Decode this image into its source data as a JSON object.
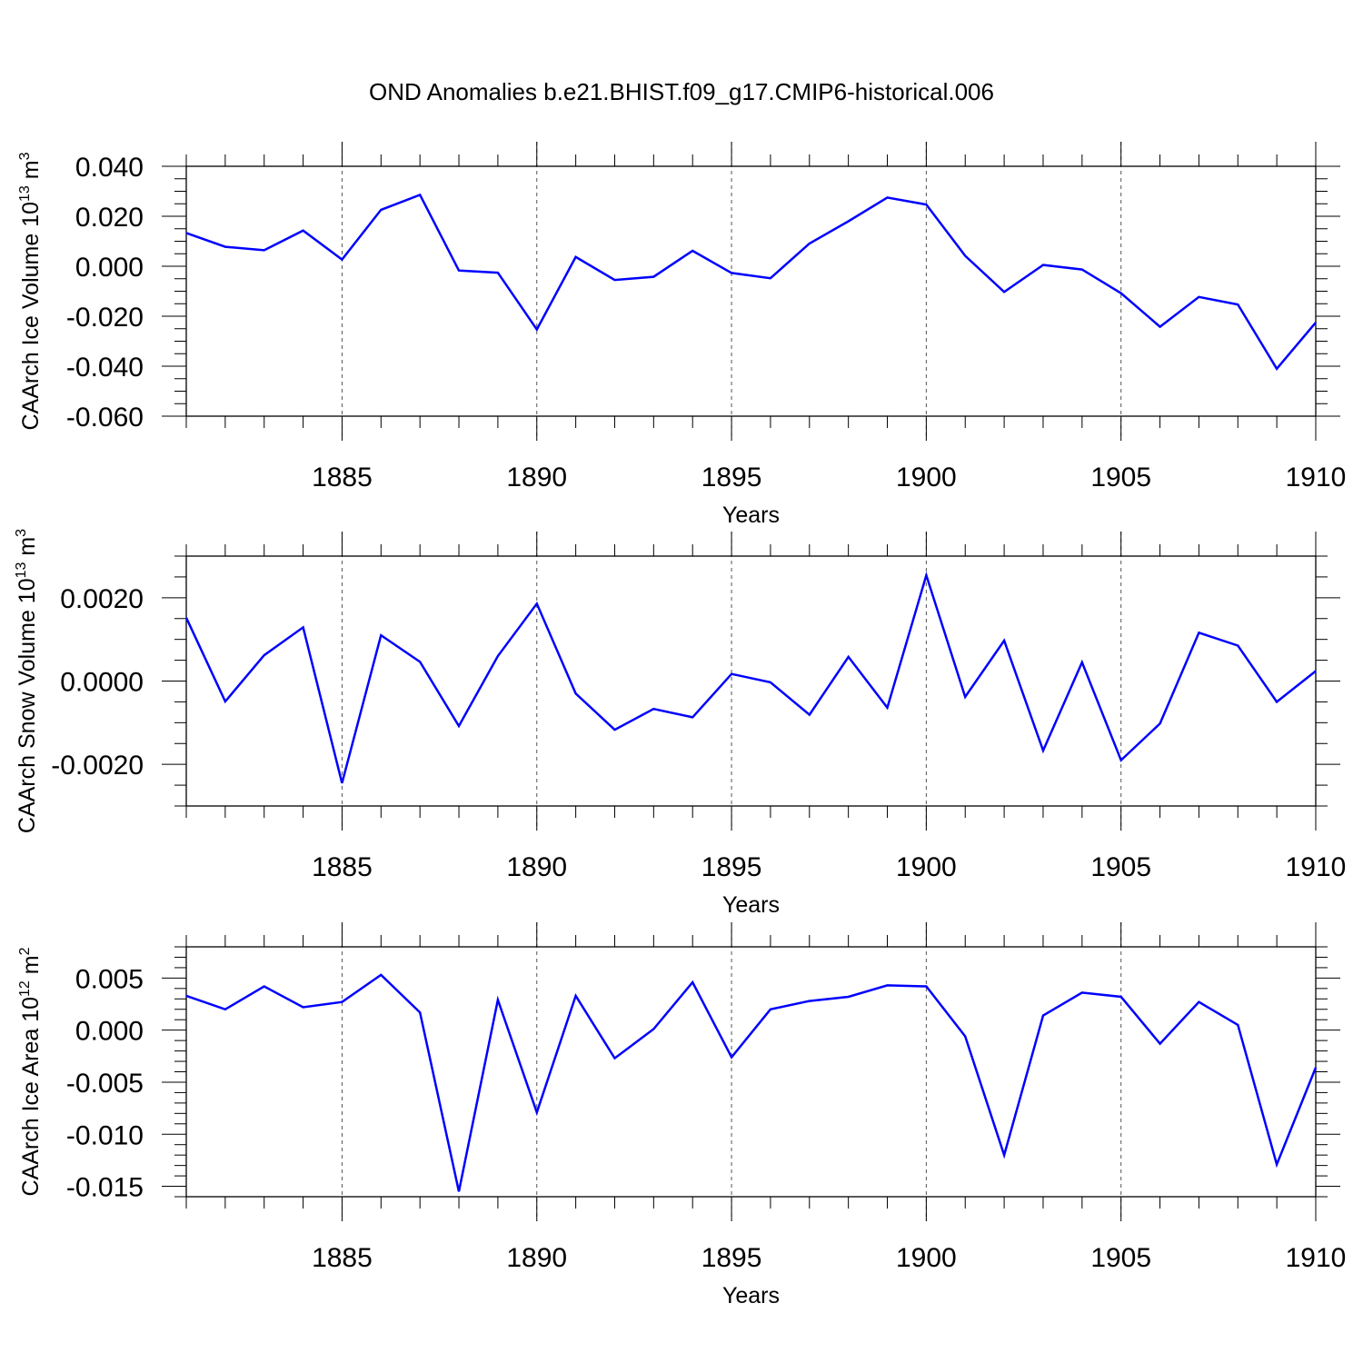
{
  "title": "OND Anomalies b.e21.BHIST.f09_g17.CMIP6-historical.006",
  "colors": {
    "line": "#0000ff",
    "axis": "#000000",
    "grid": "#555555"
  },
  "chart_data": [
    {
      "type": "line",
      "xlabel": "Years",
      "ylabel": {
        "text": "CAArch Ice Volume 10",
        "exp": "13",
        "unit": " m",
        "unit_exp": "3"
      },
      "xlim": [
        1881,
        1910
      ],
      "ylim": [
        -0.06,
        0.04
      ],
      "x_ticks": [
        1885,
        1890,
        1895,
        1900,
        1905,
        1910
      ],
      "x_tick_labels": [
        "1885",
        "1890",
        "1895",
        "1900",
        "1905",
        "1910"
      ],
      "y_ticks": [
        0.04,
        0.02,
        0.0,
        -0.02,
        -0.04,
        -0.06
      ],
      "y_tick_labels": [
        "0.040",
        "0.020",
        "0.000",
        "-0.020",
        "-0.040",
        "-0.060"
      ],
      "x_minor_step": 1,
      "y_minor_step": 0.005,
      "grid": "vertical-dashed",
      "series": [
        {
          "name": "CAArch Ice Volume",
          "x": [
            1881,
            1882,
            1883,
            1884,
            1885,
            1886,
            1887,
            1888,
            1889,
            1890,
            1891,
            1892,
            1893,
            1894,
            1895,
            1896,
            1897,
            1898,
            1899,
            1900,
            1901,
            1902,
            1903,
            1904,
            1905,
            1906,
            1907,
            1908,
            1909,
            1910
          ],
          "values": [
            0.0133,
            0.0078,
            0.0064,
            0.0143,
            0.0027,
            0.0226,
            0.0286,
            -0.0017,
            -0.0026,
            -0.0253,
            0.0037,
            -0.0055,
            -0.0042,
            0.0062,
            -0.0027,
            -0.0048,
            0.0091,
            0.018,
            0.0275,
            0.0247,
            0.0042,
            -0.0103,
            0.0005,
            -0.0013,
            -0.0108,
            -0.0242,
            -0.0123,
            -0.0153,
            -0.041,
            -0.0225
          ]
        }
      ]
    },
    {
      "type": "line",
      "xlabel": "Years",
      "ylabel": {
        "text": "CAArch Snow Volume 10",
        "exp": "13",
        "unit": " m",
        "unit_exp": "3"
      },
      "xlim": [
        1881,
        1910
      ],
      "ylim": [
        -0.003,
        0.003
      ],
      "x_ticks": [
        1885,
        1890,
        1895,
        1900,
        1905,
        1910
      ],
      "x_tick_labels": [
        "1885",
        "1890",
        "1895",
        "1900",
        "1905",
        "1910"
      ],
      "y_ticks": [
        0.002,
        0.0,
        -0.002
      ],
      "y_tick_labels": [
        "0.0020",
        "0.0000",
        "-0.0020"
      ],
      "x_minor_step": 1,
      "y_minor_step": 0.0005,
      "grid": "vertical-dashed",
      "series": [
        {
          "name": "CAArch Snow Volume",
          "x": [
            1881,
            1882,
            1883,
            1884,
            1885,
            1886,
            1887,
            1888,
            1889,
            1890,
            1891,
            1892,
            1893,
            1894,
            1895,
            1896,
            1897,
            1898,
            1899,
            1900,
            1901,
            1902,
            1903,
            1904,
            1905,
            1906,
            1907,
            1908,
            1909,
            1910
          ],
          "values": [
            0.00152,
            -0.00049,
            0.00062,
            0.00129,
            -0.00245,
            0.0011,
            0.00046,
            -0.00108,
            0.0006,
            0.00186,
            -0.0003,
            -0.00117,
            -0.00067,
            -0.00087,
            0.00017,
            -3e-05,
            -0.00081,
            0.00058,
            -0.00064,
            0.00254,
            -0.00038,
            0.00097,
            -0.00167,
            0.00045,
            -0.0019,
            -0.00102,
            0.00116,
            0.00085,
            -0.0005,
            0.00024
          ]
        }
      ]
    },
    {
      "type": "line",
      "xlabel": "Years",
      "ylabel": {
        "text": "CAArch Ice Area 10",
        "exp": "12",
        "unit": " m",
        "unit_exp": "2"
      },
      "xlim": [
        1881,
        1910
      ],
      "ylim": [
        -0.016,
        0.008
      ],
      "x_ticks": [
        1885,
        1890,
        1895,
        1900,
        1905,
        1910
      ],
      "x_tick_labels": [
        "1885",
        "1890",
        "1895",
        "1900",
        "1905",
        "1910"
      ],
      "y_ticks": [
        0.005,
        0.0,
        -0.005,
        -0.01,
        -0.015
      ],
      "y_tick_labels": [
        "0.005",
        "0.000",
        "-0.005",
        "-0.010",
        "-0.015"
      ],
      "x_minor_step": 1,
      "y_minor_step": 0.001,
      "grid": "vertical-dashed",
      "series": [
        {
          "name": "CAArch Ice Area",
          "x": [
            1881,
            1882,
            1883,
            1884,
            1885,
            1886,
            1887,
            1888,
            1889,
            1890,
            1891,
            1892,
            1893,
            1894,
            1895,
            1896,
            1897,
            1898,
            1899,
            1900,
            1901,
            1902,
            1903,
            1904,
            1905,
            1906,
            1907,
            1908,
            1909,
            1910
          ],
          "values": [
            0.0033,
            0.002,
            0.0042,
            0.0022,
            0.0027,
            0.0053,
            0.0017,
            -0.0155,
            0.0029,
            -0.0079,
            0.0033,
            -0.0027,
            0.0001,
            0.0046,
            -0.0026,
            0.002,
            0.0028,
            0.0032,
            0.0043,
            0.0042,
            -0.0006,
            -0.012,
            0.0014,
            0.0036,
            0.0032,
            -0.0013,
            0.0027,
            0.0005,
            -0.0129,
            -0.0036
          ]
        }
      ]
    }
  ]
}
